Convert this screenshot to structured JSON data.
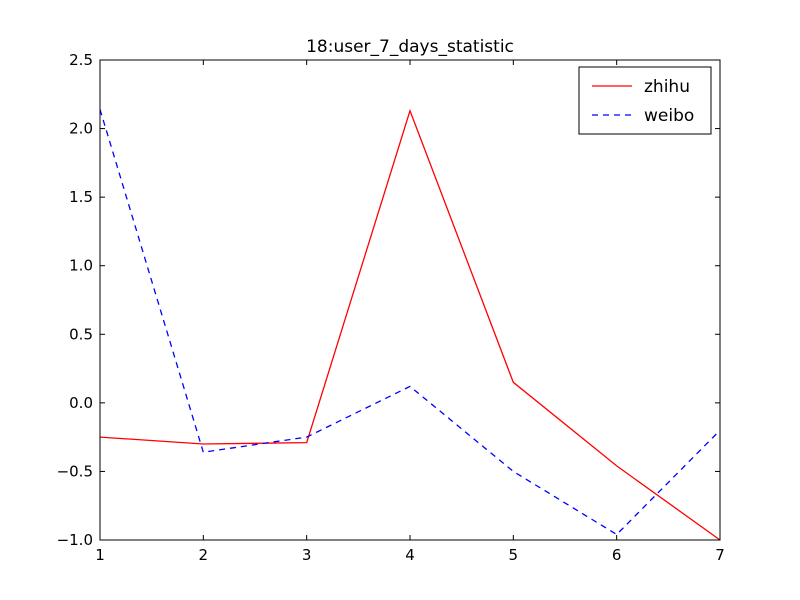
{
  "chart_data": {
    "type": "line",
    "title": "18:user_7_days_statistic",
    "xlabel": "",
    "ylabel": "",
    "x": [
      1,
      2,
      3,
      4,
      5,
      6,
      7
    ],
    "xlim": [
      1,
      7
    ],
    "ylim": [
      -1.0,
      2.5
    ],
    "xticks": [
      "1",
      "2",
      "3",
      "4",
      "5",
      "6",
      "7"
    ],
    "yticks": [
      "−1.0",
      "−0.5",
      "0.0",
      "0.5",
      "1.0",
      "1.5",
      "2.0",
      "2.5"
    ],
    "ytick_values": [
      -1.0,
      -0.5,
      0.0,
      0.5,
      1.0,
      1.5,
      2.0,
      2.5
    ],
    "grid": false,
    "legend_position": "top-right",
    "series": [
      {
        "name": "zhihu",
        "values": [
          -0.25,
          -0.3,
          -0.29,
          2.13,
          0.15,
          -0.46,
          -1.0
        ],
        "color": "#ff0000",
        "style": "solid"
      },
      {
        "name": "weibo",
        "values": [
          2.14,
          -0.36,
          -0.25,
          0.12,
          -0.5,
          -0.96,
          -0.2
        ],
        "color": "#0000ff",
        "style": "dashed"
      }
    ]
  }
}
